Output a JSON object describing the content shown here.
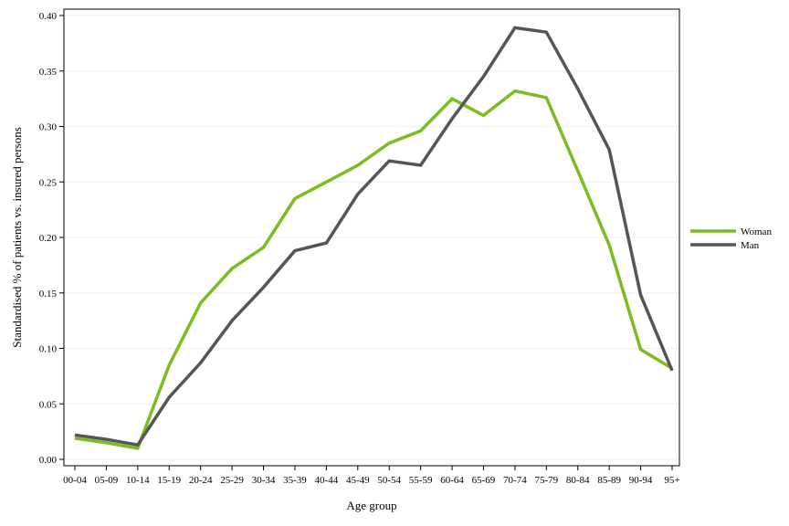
{
  "chart_data": {
    "type": "line",
    "title": "",
    "xlabel": "Age group",
    "ylabel": "Standardised % of patients vs. insured persons",
    "categories": [
      "00-04",
      "05-09",
      "10-14",
      "15-19",
      "20-24",
      "25-29",
      "30-34",
      "35-39",
      "40-44",
      "45-49",
      "50-54",
      "55-59",
      "60-64",
      "65-69",
      "70-74",
      "75-79",
      "80-84",
      "85-89",
      "90-94",
      "95+"
    ],
    "ylim": [
      0,
      0.4
    ],
    "yticks": [
      "0.00",
      "0.05",
      "0.10",
      "0.15",
      "0.20",
      "0.25",
      "0.30",
      "0.35",
      "0.40"
    ],
    "grid": true,
    "legend_position": "right",
    "series": [
      {
        "name": "Woman",
        "color": "#7dbb22",
        "values": [
          0.019,
          0.015,
          0.01,
          0.085,
          0.141,
          0.172,
          0.191,
          0.235,
          0.25,
          0.265,
          0.285,
          0.296,
          0.325,
          0.31,
          0.332,
          0.326,
          0.26,
          0.193,
          0.099,
          0.082
        ]
      },
      {
        "name": "Man",
        "color": "#555555",
        "values": [
          0.022,
          0.018,
          0.013,
          0.056,
          0.087,
          0.125,
          0.155,
          0.188,
          0.195,
          0.239,
          0.269,
          0.265,
          0.307,
          0.345,
          0.389,
          0.385,
          0.334,
          0.279,
          0.148,
          0.08
        ]
      }
    ]
  }
}
